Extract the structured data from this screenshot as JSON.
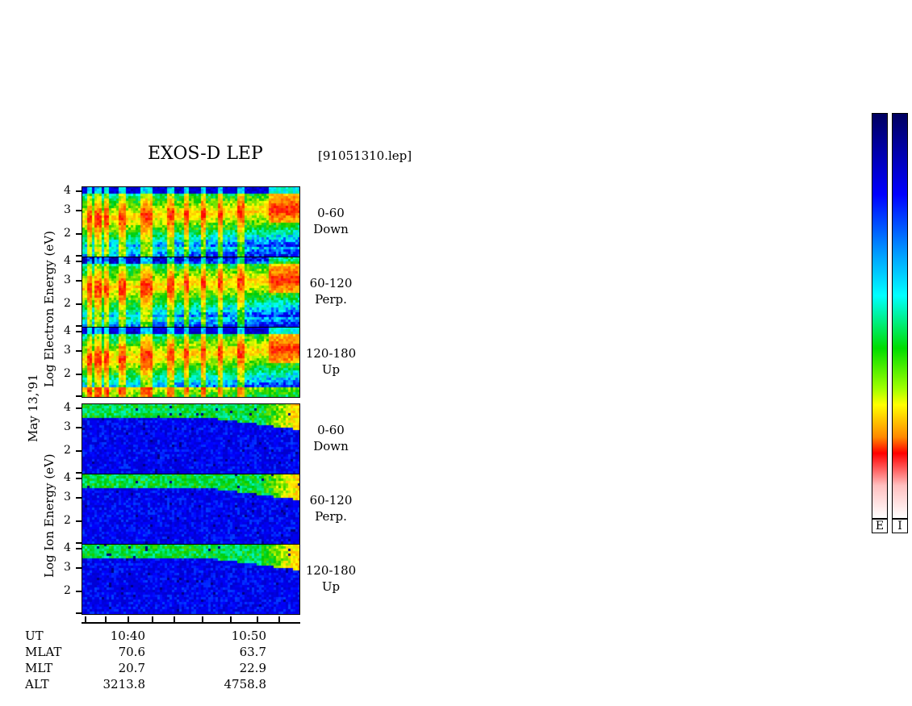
{
  "header": {
    "title": "EXOS-D LEP",
    "file": "[91051310.lep]"
  },
  "date_label": "May 13,'91",
  "electron_axis_label": "Log Electron Energy (eV)",
  "ion_axis_label": "Log Ion Energy (eV)",
  "colorbars": [
    {
      "label": "E"
    },
    {
      "label": "I"
    }
  ],
  "footer": {
    "rows": [
      {
        "label": "UT",
        "values": [
          "10:40",
          "10:50"
        ]
      },
      {
        "label": "MLAT",
        "values": [
          "70.6",
          "63.7"
        ]
      },
      {
        "label": "MLT",
        "values": [
          "20.7",
          "22.9"
        ]
      },
      {
        "label": "ALT",
        "values": [
          "3213.8",
          "4758.8"
        ]
      }
    ]
  },
  "chart_data": {
    "type": "heatmap",
    "title": "EXOS-D LEP",
    "x_axis": {
      "label": "UT",
      "ticks": [
        "10:40",
        "10:50"
      ]
    },
    "y_axis": {
      "ticks": [
        "2",
        "3",
        "4"
      ],
      "range": [
        1,
        4
      ]
    },
    "panels": [
      {
        "species": "Electron",
        "pitch_angle": "0-60",
        "direction": "Down"
      },
      {
        "species": "Electron",
        "pitch_angle": "60-120",
        "direction": "Perp."
      },
      {
        "species": "Electron",
        "pitch_angle": "120-180",
        "direction": "Up"
      },
      {
        "species": "Ion",
        "pitch_angle": "0-60",
        "direction": "Down"
      },
      {
        "species": "Ion",
        "pitch_angle": "60-120",
        "direction": "Perp."
      },
      {
        "species": "Ion",
        "pitch_angle": "120-180",
        "direction": "Up"
      }
    ],
    "colors": {
      "scale": [
        "#ffffff",
        "#ff0000",
        "#ff8800",
        "#ffff00",
        "#00cc00",
        "#00ffff",
        "#0000ff",
        "#000080"
      ]
    }
  }
}
